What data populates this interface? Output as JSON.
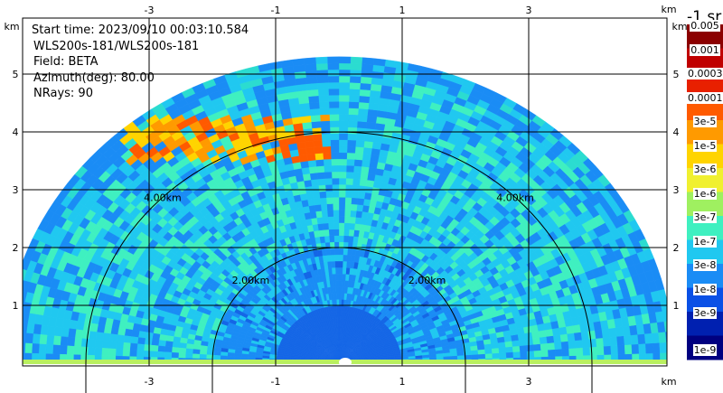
{
  "info": {
    "start_time": "Start time: 2023/09/10 00:03:10.584",
    "station": "WLS200s-181/WLS200s-181",
    "field": "Field: BETA",
    "azimuth": "Azimuth(deg): 80.00",
    "nrays": "NRays: 90"
  },
  "axes": {
    "x_unit": "km",
    "y_unit": "km",
    "x_ticks": [
      "-3",
      "-1",
      "1",
      "3"
    ],
    "y_ticks": [
      "5",
      "4",
      "3",
      "2",
      "1"
    ],
    "x_tick_values": [
      -3,
      -1,
      1,
      3
    ],
    "y_tick_values": [
      5,
      4,
      3,
      2,
      1
    ],
    "x_range": [
      -5.3,
      4.7
    ],
    "y_range": [
      0,
      6
    ]
  },
  "range_rings": [
    {
      "label": "2.00km",
      "radius_km": 2
    },
    {
      "label": "4.00km",
      "radius_km": 4
    }
  ],
  "colorbar": {
    "title": "-1 sr",
    "labels": [
      "0.005",
      "0.001",
      "0.0003",
      "0.0001",
      "3e-5",
      "1e-5",
      "3e-6",
      "1e-6",
      "3e-7",
      "1e-7",
      "3e-8",
      "1e-8",
      "3e-9",
      "1e-9"
    ],
    "colors": [
      "#8b0000",
      "#c00000",
      "#e82000",
      "#ff5a00",
      "#ff9a00",
      "#ffd400",
      "#f0f030",
      "#9ff060",
      "#3ff0c0",
      "#20c8f0",
      "#1a8cf5",
      "#0a50e6",
      "#0020b0",
      "#000080"
    ]
  },
  "scan": {
    "max_range_km": 5.3,
    "nrays": 90,
    "type": "RHI"
  }
}
